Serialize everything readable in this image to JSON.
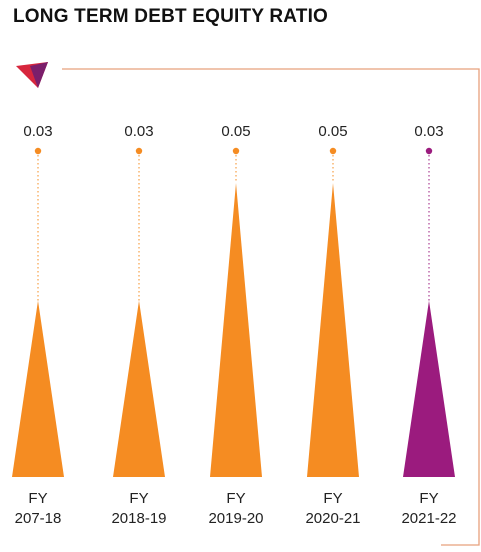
{
  "title": "LONG TERM DEBT EQUITY RATIO",
  "colors": {
    "primary": "#F58C22",
    "highlight": "#9B1B7E",
    "frame": "#E8A07C",
    "logo_red": "#D7263D",
    "logo_purple": "#7B1E6B"
  },
  "logo": {
    "icon": "triangle-logo-icon"
  },
  "chart_data": {
    "type": "bar",
    "title": "LONG TERM DEBT EQUITY RATIO",
    "categories": [
      [
        "FY",
        "207-18"
      ],
      [
        "FY",
        "2018-19"
      ],
      [
        "FY",
        "2019-20"
      ],
      [
        "FY",
        "2020-21"
      ],
      [
        "FY",
        "2021-22"
      ]
    ],
    "values": [
      0.03,
      0.03,
      0.05,
      0.05,
      0.03
    ],
    "value_labels": [
      "0.03",
      "0.03",
      "0.05",
      "0.05",
      "0.03"
    ],
    "highlight_index": 4,
    "ylim": [
      0,
      0.05
    ],
    "grid": false,
    "legend": "none"
  }
}
